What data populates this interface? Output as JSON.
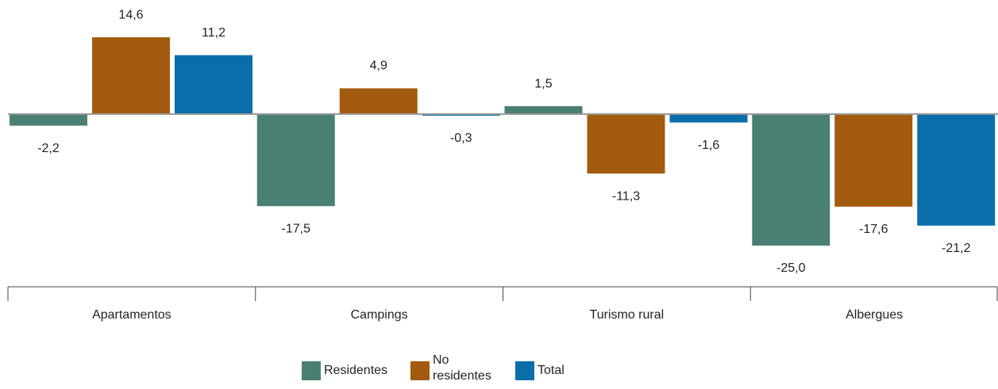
{
  "chart_data": {
    "type": "bar",
    "categories": [
      "Apartamentos",
      "Campings",
      "Turismo rural",
      "Albergues"
    ],
    "series": [
      {
        "name": "Residentes",
        "color": "#4a7f74",
        "values": [
          -2.2,
          -17.5,
          1.5,
          -25.0
        ],
        "value_labels": [
          "-2,2",
          "-17,5",
          "1,5",
          "-25,0"
        ]
      },
      {
        "name": "No residentes",
        "color": "#a35c0f",
        "values": [
          14.6,
          4.9,
          -11.3,
          -17.6
        ],
        "value_labels": [
          "14,6",
          "4,9",
          "-11,3",
          "-17,6"
        ]
      },
      {
        "name": "Total",
        "color": "#0a6eaa",
        "values": [
          11.2,
          -0.3,
          -1.6,
          -21.2
        ],
        "value_labels": [
          "11,2",
          "-0,3",
          "-1,6",
          "-21,2"
        ]
      }
    ]
  }
}
